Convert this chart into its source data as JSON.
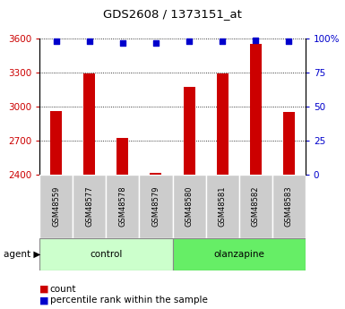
{
  "title": "GDS2608 / 1373151_at",
  "samples": [
    "GSM48559",
    "GSM48577",
    "GSM48578",
    "GSM48579",
    "GSM48580",
    "GSM48581",
    "GSM48582",
    "GSM48583"
  ],
  "counts": [
    2960,
    3290,
    2720,
    2415,
    3175,
    3295,
    3555,
    2950
  ],
  "percentiles": [
    98,
    98,
    97,
    97,
    98,
    98,
    99,
    98
  ],
  "groups": [
    "control",
    "control",
    "control",
    "control",
    "olanzapine",
    "olanzapine",
    "olanzapine",
    "olanzapine"
  ],
  "group_colors": {
    "control": "#ccffcc",
    "olanzapine": "#66ee66"
  },
  "bar_color": "#cc0000",
  "percentile_color": "#0000cc",
  "ylim_left": [
    2400,
    3600
  ],
  "ylim_right": [
    0,
    100
  ],
  "yticks_left": [
    2400,
    2700,
    3000,
    3300,
    3600
  ],
  "yticks_right": [
    0,
    25,
    50,
    75,
    100
  ],
  "grid_color": "black",
  "left_tick_color": "#cc0000",
  "right_tick_color": "#0000cc",
  "tick_label_area_color": "#cccccc",
  "agent_label": "agent",
  "agent_arrow": "▶",
  "bar_width": 0.35
}
